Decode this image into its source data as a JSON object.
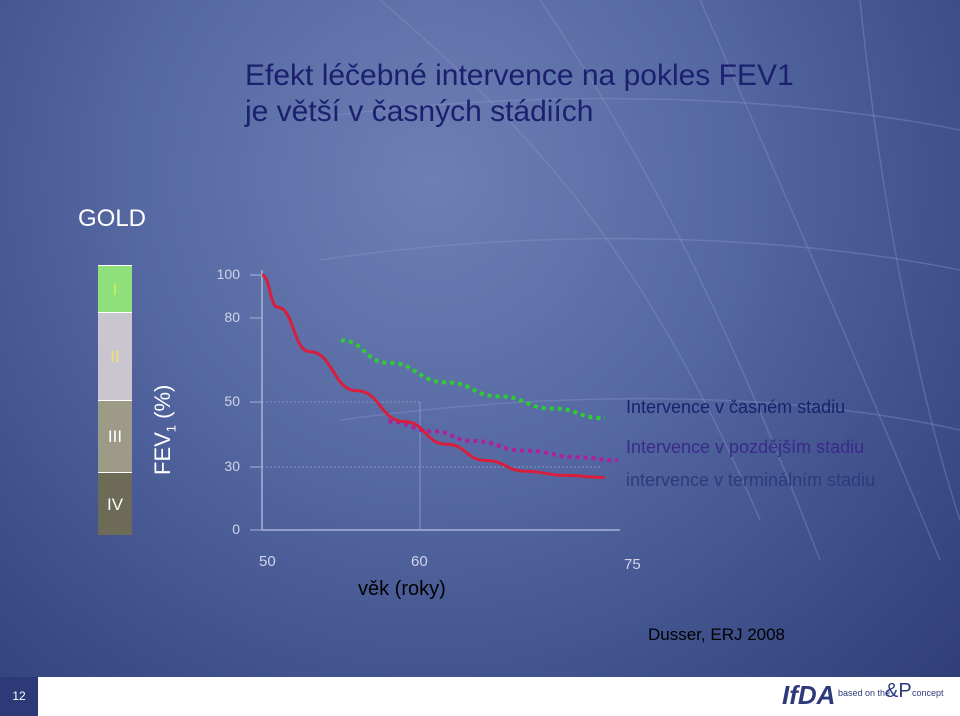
{
  "title_line1": "Efekt léčebné intervence na pokles FEV1",
  "title_line2": "je větší v časných stádiích",
  "gold_label": "GOLD",
  "stages": [
    {
      "label": "I",
      "color": "#8fe07a",
      "text_color": "#c8f060"
    },
    {
      "label": "II",
      "color": "#c9c6d0",
      "text_color": "#f0e070"
    },
    {
      "label": "III",
      "color": "#9e9a88",
      "text_color": "#ffffff"
    },
    {
      "label": "IV",
      "color": "#6e6a58",
      "text_color": "#ffffff"
    }
  ],
  "ylabel_main": "FEV",
  "ylabel_sub": "1",
  "ylabel_unit": " (%)",
  "xlabel": "věk (roky)",
  "source": "Dusser, ERJ 2008",
  "slide_number": "12",
  "logo": {
    "text": "IfDA",
    "tagline": "based on the",
    "mark": "&P",
    "tagline2": "concept"
  },
  "chart_data": {
    "type": "line",
    "yticks": [
      "100",
      "80",
      "50",
      "30",
      "0"
    ],
    "xticks": [
      "50",
      "60",
      "75"
    ],
    "series": [
      {
        "name": "Intervence v časném stadiu",
        "color": "#2ecc33",
        "style": "dotted",
        "x": [
          55,
          58,
          62,
          66,
          70,
          74
        ],
        "y": [
          72,
          64,
          57,
          52,
          48,
          45
        ]
      },
      {
        "name": "Intervence v pozdějším stadiu",
        "color": "#b0209a",
        "style": "dotted",
        "x": [
          58,
          61,
          64,
          68,
          72,
          75
        ],
        "y": [
          44,
          41,
          38,
          35,
          33,
          32
        ]
      },
      {
        "name": "intervence v terminálním stadiu",
        "color": "#d81e3c",
        "style": "solid",
        "x": [
          50,
          51,
          53,
          56,
          59,
          62,
          65,
          68,
          71,
          74
        ],
        "y": [
          100,
          85,
          68,
          54,
          44,
          37,
          32,
          28,
          26,
          25
        ]
      }
    ]
  }
}
